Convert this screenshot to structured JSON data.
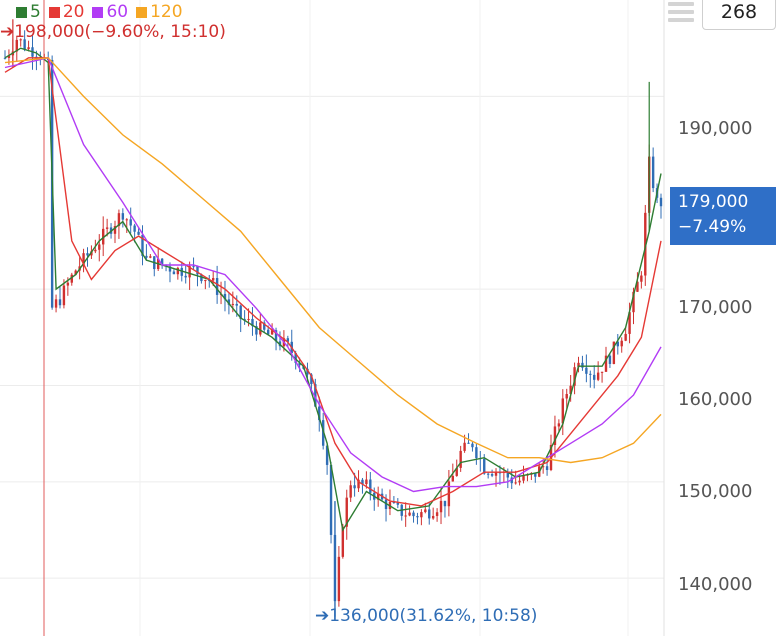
{
  "legend": [
    {
      "label": "5",
      "color": "#2e7d32"
    },
    {
      "label": "20",
      "color": "#e53935"
    },
    {
      "label": "60",
      "color": "#b23cf5"
    },
    {
      "label": "120",
      "color": "#f5a623"
    }
  ],
  "high_label": "➔198,000(−9.60%, 15:10)",
  "low_label": "➔136,000(31.62%, 10:58)",
  "count_value": "268",
  "current": {
    "price": "179,000",
    "change": "−7.49%",
    "color": "#2f6fc7"
  },
  "colors": {
    "up": "#d0302f",
    "down": "#2f6db5",
    "grid": "#ececec"
  },
  "chart_data": {
    "type": "line",
    "ylim": [
      134000,
      200000
    ],
    "yticks": [
      {
        "value": 190000,
        "label": "190,000"
      },
      {
        "value": 170000,
        "label": "170,000"
      },
      {
        "value": 160000,
        "label": "160,000"
      },
      {
        "value": 150000,
        "label": "150,000"
      },
      {
        "value": 140000,
        "label": "140,000"
      }
    ],
    "price_points": [
      [
        0,
        194000
      ],
      [
        3,
        196000
      ],
      [
        6,
        195000
      ],
      [
        9,
        194500
      ],
      [
        11,
        193000
      ],
      [
        12,
        168000
      ],
      [
        14,
        169000
      ],
      [
        18,
        172000
      ],
      [
        22,
        174000
      ],
      [
        26,
        176000
      ],
      [
        30,
        178000
      ],
      [
        33,
        176000
      ],
      [
        36,
        173000
      ],
      [
        40,
        172500
      ],
      [
        44,
        172000
      ],
      [
        48,
        172000
      ],
      [
        52,
        171000
      ],
      [
        56,
        169000
      ],
      [
        60,
        167000
      ],
      [
        64,
        166000
      ],
      [
        68,
        165000
      ],
      [
        72,
        164000
      ],
      [
        76,
        162000
      ],
      [
        80,
        157000
      ],
      [
        82,
        152000
      ],
      [
        84,
        137000
      ],
      [
        86,
        146000
      ],
      [
        88,
        150000
      ],
      [
        92,
        149500
      ],
      [
        96,
        148000
      ],
      [
        100,
        147000
      ],
      [
        104,
        146500
      ],
      [
        108,
        147000
      ],
      [
        112,
        148000
      ],
      [
        116,
        153000
      ],
      [
        119,
        154000
      ],
      [
        122,
        151500
      ],
      [
        126,
        151000
      ],
      [
        130,
        150000
      ],
      [
        134,
        150500
      ],
      [
        138,
        152000
      ],
      [
        142,
        158000
      ],
      [
        146,
        163000
      ],
      [
        150,
        161000
      ],
      [
        154,
        163000
      ],
      [
        158,
        166000
      ],
      [
        162,
        172000
      ],
      [
        164,
        183000
      ],
      [
        166,
        179000
      ]
    ],
    "series": [
      {
        "name": "5",
        "values": [
          [
            0,
            194000
          ],
          [
            4,
            195000
          ],
          [
            8,
            194500
          ],
          [
            11,
            193500
          ],
          [
            13,
            170000
          ],
          [
            18,
            171500
          ],
          [
            24,
            175000
          ],
          [
            30,
            177000
          ],
          [
            36,
            173000
          ],
          [
            44,
            172000
          ],
          [
            52,
            171000
          ],
          [
            60,
            167000
          ],
          [
            68,
            165000
          ],
          [
            76,
            162000
          ],
          [
            82,
            154000
          ],
          [
            86,
            145000
          ],
          [
            92,
            149000
          ],
          [
            100,
            147000
          ],
          [
            108,
            147500
          ],
          [
            116,
            152000
          ],
          [
            122,
            152500
          ],
          [
            130,
            150500
          ],
          [
            136,
            151000
          ],
          [
            142,
            156000
          ],
          [
            146,
            162000
          ],
          [
            152,
            162000
          ],
          [
            158,
            166000
          ],
          [
            164,
            176000
          ],
          [
            167,
            182000
          ]
        ]
      },
      {
        "name": "20",
        "values": [
          [
            0,
            192500
          ],
          [
            6,
            194000
          ],
          [
            11,
            194000
          ],
          [
            17,
            175000
          ],
          [
            22,
            171000
          ],
          [
            28,
            174000
          ],
          [
            34,
            175500
          ],
          [
            40,
            174000
          ],
          [
            48,
            172000
          ],
          [
            56,
            170000
          ],
          [
            64,
            167000
          ],
          [
            72,
            164500
          ],
          [
            78,
            161000
          ],
          [
            84,
            154000
          ],
          [
            90,
            150000
          ],
          [
            98,
            148000
          ],
          [
            106,
            147500
          ],
          [
            114,
            149000
          ],
          [
            122,
            151000
          ],
          [
            130,
            151000
          ],
          [
            138,
            152000
          ],
          [
            144,
            155000
          ],
          [
            150,
            158000
          ],
          [
            156,
            161000
          ],
          [
            162,
            165000
          ],
          [
            167,
            175000
          ]
        ]
      },
      {
        "name": "60",
        "values": [
          [
            0,
            193000
          ],
          [
            11,
            194000
          ],
          [
            20,
            185000
          ],
          [
            30,
            179000
          ],
          [
            40,
            172500
          ],
          [
            48,
            172500
          ],
          [
            56,
            171500
          ],
          [
            64,
            168000
          ],
          [
            72,
            164000
          ],
          [
            80,
            158000
          ],
          [
            88,
            153000
          ],
          [
            96,
            150500
          ],
          [
            104,
            149000
          ],
          [
            112,
            149500
          ],
          [
            120,
            149500
          ],
          [
            128,
            150000
          ],
          [
            136,
            152000
          ],
          [
            144,
            154000
          ],
          [
            152,
            156000
          ],
          [
            160,
            159000
          ],
          [
            167,
            164000
          ]
        ]
      },
      {
        "name": "120",
        "values": [
          [
            0,
            193500
          ],
          [
            11,
            194000
          ],
          [
            20,
            190000
          ],
          [
            30,
            186000
          ],
          [
            40,
            183000
          ],
          [
            50,
            179500
          ],
          [
            60,
            176000
          ],
          [
            70,
            171000
          ],
          [
            80,
            166000
          ],
          [
            90,
            162500
          ],
          [
            100,
            159000
          ],
          [
            110,
            156000
          ],
          [
            120,
            154000
          ],
          [
            128,
            152500
          ],
          [
            136,
            152500
          ],
          [
            144,
            152000
          ],
          [
            152,
            152500
          ],
          [
            160,
            154000
          ],
          [
            167,
            157000
          ]
        ]
      }
    ]
  }
}
